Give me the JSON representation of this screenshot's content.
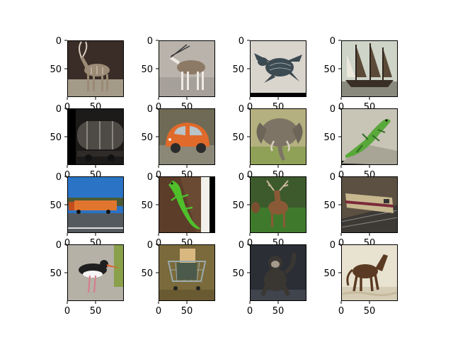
{
  "chart_data": {
    "type": "image-grid",
    "layout": {
      "rows": 4,
      "cols": 4
    },
    "axes": {
      "xlim": [
        0,
        100
      ],
      "ylim": [
        100,
        0
      ],
      "x_ticks": [
        0,
        50
      ],
      "y_ticks": [
        0,
        50
      ],
      "x_tick_labels": [
        "0",
        "50"
      ],
      "y_tick_labels": [
        "0",
        "50"
      ],
      "frame": true,
      "grid": false
    },
    "images": [
      {
        "depicts": "kudu-antelope-icon",
        "colors": {
          "bg": "#3a2c26",
          "main": "#9b8a75",
          "accent": "#d8cfc0",
          "ground": "#a49a88"
        }
      },
      {
        "depicts": "oryx-antelope-icon",
        "colors": {
          "bg": "#b9b3ab",
          "main": "#8c7a66",
          "accent": "#efe9e3",
          "ground": "#a6a09a"
        }
      },
      {
        "depicts": "sea-turtle-icon",
        "colors": {
          "bg": "#d9d4cc",
          "main": "#3c4a52",
          "accent": "#9aa5ab",
          "ground": "#c9c3ba"
        }
      },
      {
        "depicts": "sailing-ship-icon",
        "colors": {
          "bg": "#cfd4c8",
          "main": "#5b4a38",
          "accent": "#ece8dc",
          "ground": "#8a8a7e"
        }
      },
      {
        "depicts": "tank-car-train-icon",
        "colors": {
          "bg": "#1d1b1a",
          "main": "#4e4a45",
          "accent": "#8a857e",
          "ground": "#2e2b28"
        }
      },
      {
        "depicts": "orange-microcar-icon",
        "colors": {
          "bg": "#6f6a55",
          "main": "#e06a2a",
          "accent": "#2b2b2b",
          "ground": "#8c8878"
        }
      },
      {
        "depicts": "elephant-icon",
        "colors": {
          "bg": "#b4b07f",
          "main": "#7d7466",
          "accent": "#d8d2c2",
          "ground": "#8fa057"
        }
      },
      {
        "depicts": "green-lizard-icon",
        "colors": {
          "bg": "#c8c4b6",
          "main": "#59a83a",
          "accent": "#2f6b22",
          "ground": "#a8a496"
        }
      },
      {
        "depicts": "orange-truck-icon",
        "colors": {
          "bg": "#2a73c5",
          "main": "#e0762e",
          "accent": "#4a5a36",
          "ground": "#555a5e"
        }
      },
      {
        "depicts": "green-gecko-icon",
        "colors": {
          "bg": "#6a4a32",
          "main": "#4fbf2a",
          "accent": "#f1f0ea",
          "ground": "#5b3d29"
        }
      },
      {
        "depicts": "red-deer-icon",
        "colors": {
          "bg": "#3d5a2c",
          "main": "#8a5a36",
          "accent": "#c9b79a",
          "ground": "#3f7a2c"
        }
      },
      {
        "depicts": "locomotive-icon",
        "colors": {
          "bg": "#5c5042",
          "main": "#c8b890",
          "accent": "#7a2a3a",
          "ground": "#3d3a36"
        }
      },
      {
        "depicts": "oystercatcher-bird-icon",
        "colors": {
          "bg": "#b5b1a7",
          "main": "#1f1f1f",
          "accent": "#e0602a",
          "ground": "#a29e95"
        }
      },
      {
        "depicts": "shopping-cart-icon",
        "colors": {
          "bg": "#7a6a3c",
          "main": "#4b5a4a",
          "accent": "#d9b880",
          "ground": "#6a5a32"
        }
      },
      {
        "depicts": "chimpanzee-icon",
        "colors": {
          "bg": "#2b2e35",
          "main": "#5a5550",
          "accent": "#a69a8c",
          "ground": "#40444c"
        }
      },
      {
        "depicts": "horse-icon",
        "colors": {
          "bg": "#e8e2d0",
          "main": "#5a3a22",
          "accent": "#c6b99c",
          "ground": "#d5cdb6"
        }
      }
    ]
  }
}
